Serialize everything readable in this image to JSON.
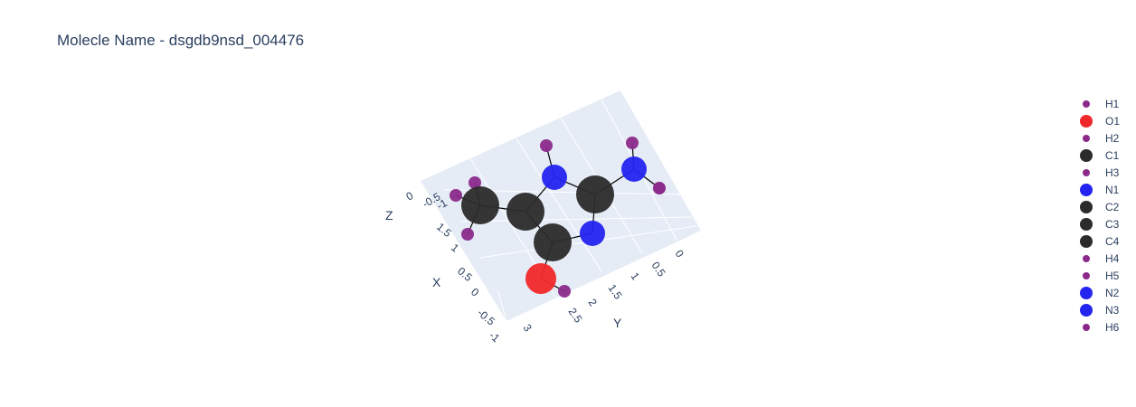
{
  "chart_data": {
    "type": "scatter3d",
    "title": "Molecle Name - dsgdb9nsd_004476",
    "axes": {
      "x": {
        "label": "X",
        "ticks": [
          "-1",
          "-0.5",
          "0",
          "0.5",
          "1",
          "1.5"
        ]
      },
      "y": {
        "label": "Y",
        "ticks": [
          "0",
          "0.5",
          "1",
          "1.5",
          "2",
          "2.5",
          "3"
        ]
      },
      "z": {
        "label": "Z",
        "ticks": [
          "0",
          "-0.5",
          "-1"
        ]
      }
    },
    "colors": {
      "H": "#8b2a8b",
      "O": "#f0282a",
      "C": "#2b2b2b",
      "N": "#2424f0",
      "bond": "#000000",
      "scene_bg": "#e5ecf6",
      "grid": "#ffffff"
    },
    "legend": [
      "H1",
      "O1",
      "H2",
      "C1",
      "H3",
      "N1",
      "C2",
      "C3",
      "C4",
      "H4",
      "H5",
      "N2",
      "N3",
      "H6"
    ],
    "atoms": [
      {
        "name": "C1",
        "element": "C"
      },
      {
        "name": "C2",
        "element": "C"
      },
      {
        "name": "C3",
        "element": "C"
      },
      {
        "name": "C4",
        "element": "C"
      },
      {
        "name": "N1",
        "element": "N"
      },
      {
        "name": "N2",
        "element": "N"
      },
      {
        "name": "N3",
        "element": "N"
      },
      {
        "name": "O1",
        "element": "O"
      },
      {
        "name": "H1",
        "element": "H"
      },
      {
        "name": "H2",
        "element": "H"
      },
      {
        "name": "H3",
        "element": "H"
      },
      {
        "name": "H4",
        "element": "H"
      },
      {
        "name": "H5",
        "element": "H"
      },
      {
        "name": "H6",
        "element": "H"
      }
    ],
    "bonds": [
      [
        "C1",
        "C2"
      ],
      [
        "C1",
        "H1"
      ],
      [
        "C1",
        "H2"
      ],
      [
        "C1",
        "H3"
      ],
      [
        "C2",
        "N1"
      ],
      [
        "C2",
        "C3"
      ],
      [
        "N1",
        "H4"
      ],
      [
        "N1",
        "C4"
      ],
      [
        "C4",
        "N2"
      ],
      [
        "C4",
        "N3"
      ],
      [
        "N3",
        "C3"
      ],
      [
        "C3",
        "O1"
      ],
      [
        "O1",
        "H5"
      ],
      [
        "N2",
        "H6"
      ]
    ]
  }
}
